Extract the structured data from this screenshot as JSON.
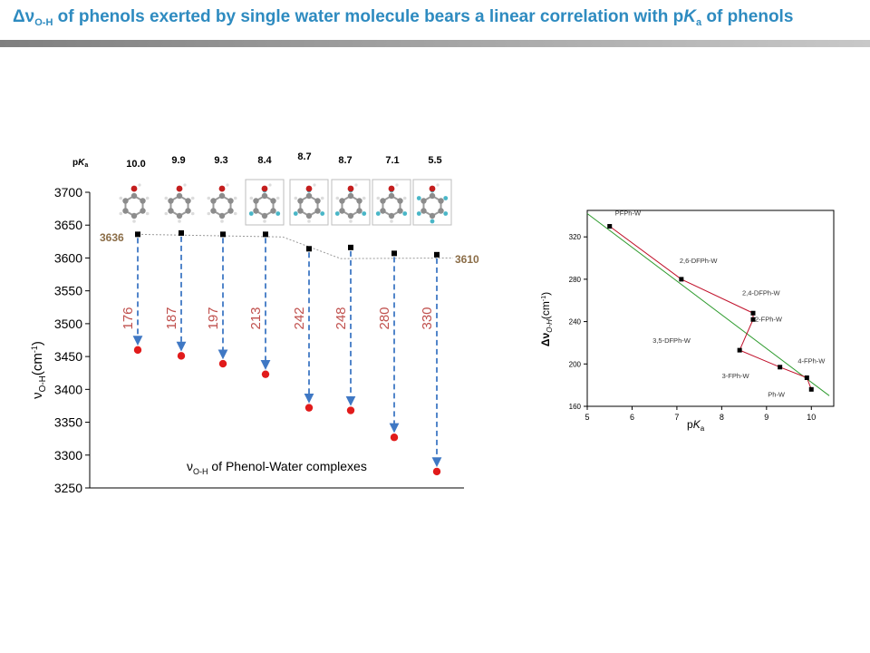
{
  "slide": {
    "title_pre": "Δν",
    "title_sub": "O-H",
    "title_mid": " of phenols exerted by single water molecule bears a linear correlation with p",
    "title_k": "K",
    "title_a": "a",
    "title_post": " of phenols"
  },
  "chart_data": [
    {
      "type": "scatter",
      "annotation_pre": "ν",
      "annotation_sub": "O-H",
      "annotation_post": " of Phenol-Water complexes",
      "ylabel_pre": "ν",
      "ylabel_sub": "O-H",
      "ylabel_post": "(cm",
      "ylabel_sup": "-1",
      "ylabel_close": ")",
      "ylim": [
        3250,
        3700
      ],
      "yticks": [
        "3250",
        "3300",
        "3350",
        "3400",
        "3450",
        "3500",
        "3550",
        "3600",
        "3650",
        "3700"
      ],
      "pka_header_pre": "p",
      "pka_header_k": "K",
      "pka_header_a": "a",
      "pka_values": [
        "10.0",
        "9.9",
        "9.3",
        "8.4",
        "8.7",
        "8.7",
        "7.1",
        "5.5"
      ],
      "monomer_values": [
        3636,
        3638,
        3636,
        3636,
        3614,
        3616,
        3607,
        3605
      ],
      "complex_values": [
        3460,
        3451,
        3439,
        3423,
        3372,
        3368,
        3327,
        3275
      ],
      "shifts": [
        "176",
        "187",
        "197",
        "213",
        "242",
        "248",
        "280",
        "330"
      ],
      "label_left": "3636",
      "label_right": "3610",
      "colors": {
        "monomer": "#000000",
        "complex": "#e11b1b",
        "arrow": "#3f78c4",
        "shift": "#c0504d",
        "edge_label": "#8b6d47"
      }
    },
    {
      "type": "scatter",
      "xlabel_pre": "p",
      "xlabel_k": "K",
      "xlabel_a": "a",
      "ylabel_pre": "Δν",
      "ylabel_sub": "O-H",
      "ylabel_post": "(cm",
      "ylabel_sup": "-1",
      "ylabel_close": ")",
      "xlim": [
        5,
        10.5
      ],
      "ylim": [
        160,
        345
      ],
      "xticks": [
        "5",
        "6",
        "7",
        "8",
        "9",
        "10"
      ],
      "yticks": [
        "160",
        "200",
        "240",
        "280",
        "320"
      ],
      "points": [
        {
          "name": "PFPh-W",
          "x": 5.5,
          "y": 330
        },
        {
          "name": "2,6-DFPh-W",
          "x": 7.1,
          "y": 280
        },
        {
          "name": "2,4-DFPh-W",
          "x": 8.7,
          "y": 248
        },
        {
          "name": "2-FPh-W",
          "x": 8.7,
          "y": 242
        },
        {
          "name": "3,5-DFPh-W",
          "x": 8.4,
          "y": 213
        },
        {
          "name": "3-FPh-W",
          "x": 9.3,
          "y": 197
        },
        {
          "name": "4-FPh-W",
          "x": 9.9,
          "y": 187
        },
        {
          "name": "Ph-W",
          "x": 10.0,
          "y": 176
        }
      ],
      "colors": {
        "points": "#000000",
        "connector": "#c0102a",
        "fit": "#2e9b2e"
      }
    }
  ]
}
